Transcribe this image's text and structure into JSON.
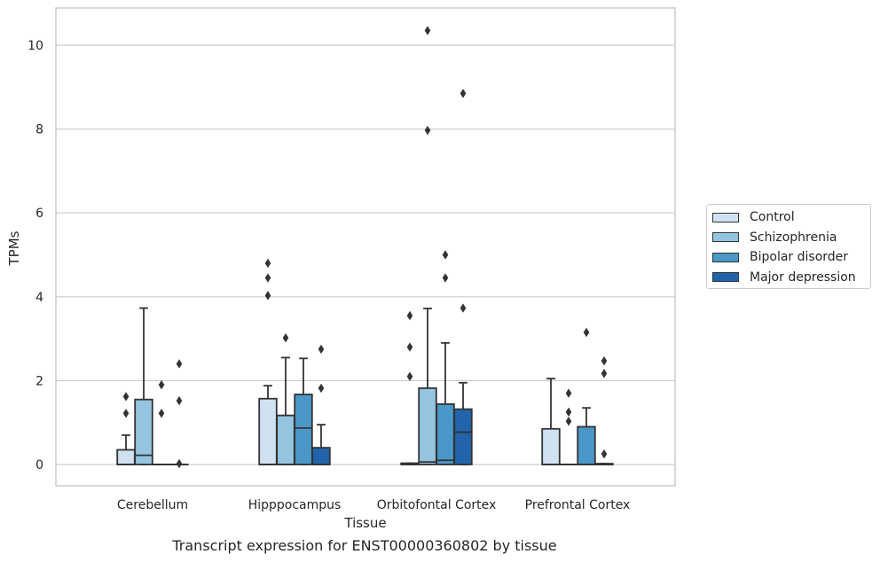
{
  "caption": "Transcript expression for ENST00000360802 by tissue",
  "colors": {
    "Control": "#d0e1f2",
    "Schizophrenia": "#94c4df",
    "Bipolar disorder": "#4a98c9",
    "Major depression": "#2264ab",
    "outline": "#333333",
    "grid": "#cccccc"
  },
  "chart_data": {
    "type": "box",
    "title": "",
    "xlabel": "Tissue",
    "ylabel": "TPMs",
    "ylim": [
      -0.5,
      10.85
    ],
    "yticks": [
      0,
      2,
      4,
      6,
      8,
      10
    ],
    "grid": true,
    "legend_position": "right",
    "categories": [
      "Cerebellum",
      "Hipppocampus",
      "Orbitofontal Cortex",
      "Prefrontal Cortex"
    ],
    "series": [
      {
        "name": "Control",
        "boxes": [
          {
            "q1": 0,
            "median": 0,
            "q3": 0.35,
            "whisker_low": 0,
            "whisker_high": 0.7,
            "outliers": [
              1.22,
              1.62
            ]
          },
          {
            "q1": 0,
            "median": 0,
            "q3": 1.57,
            "whisker_low": 0,
            "whisker_high": 1.88,
            "outliers": [
              4.03,
              4.45,
              4.8
            ]
          },
          {
            "q1": 0,
            "median": 0,
            "q3": 0.03,
            "whisker_low": 0,
            "whisker_high": 0.03,
            "outliers": [
              2.1,
              2.8,
              3.55
            ]
          },
          {
            "q1": 0,
            "median": 0,
            "q3": 0.85,
            "whisker_low": 0,
            "whisker_high": 2.05,
            "outliers": []
          }
        ]
      },
      {
        "name": "Schizophrenia",
        "boxes": [
          {
            "q1": 0,
            "median": 0.22,
            "q3": 1.55,
            "whisker_low": 0,
            "whisker_high": 3.73,
            "outliers": []
          },
          {
            "q1": 0,
            "median": 0,
            "q3": 1.17,
            "whisker_low": 0,
            "whisker_high": 2.55,
            "outliers": [
              3.02
            ]
          },
          {
            "q1": 0,
            "median": 0.06,
            "q3": 1.82,
            "whisker_low": 0,
            "whisker_high": 3.72,
            "outliers": [
              7.97,
              10.35
            ]
          },
          {
            "q1": 0,
            "median": 0,
            "q3": 0,
            "whisker_low": 0,
            "whisker_high": 0,
            "outliers": [
              1.03,
              1.25,
              1.7
            ]
          }
        ]
      },
      {
        "name": "Bipolar disorder",
        "boxes": [
          {
            "q1": 0,
            "median": 0,
            "q3": 0,
            "whisker_low": 0,
            "whisker_high": 0,
            "outliers": [
              1.22,
              1.9
            ]
          },
          {
            "q1": 0,
            "median": 0.87,
            "q3": 1.67,
            "whisker_low": 0,
            "whisker_high": 2.53,
            "outliers": []
          },
          {
            "q1": 0,
            "median": 0.1,
            "q3": 1.44,
            "whisker_low": 0,
            "whisker_high": 2.9,
            "outliers": [
              4.45,
              5.0
            ]
          },
          {
            "q1": 0,
            "median": 0,
            "q3": 0.9,
            "whisker_low": 0,
            "whisker_high": 1.35,
            "outliers": [
              3.15
            ]
          }
        ]
      },
      {
        "name": "Major depression",
        "boxes": [
          {
            "q1": 0,
            "median": 0,
            "q3": 0,
            "whisker_low": 0,
            "whisker_high": 0,
            "outliers": [
              0.02,
              1.52,
              2.4
            ]
          },
          {
            "q1": 0,
            "median": 0,
            "q3": 0.4,
            "whisker_low": 0,
            "whisker_high": 0.95,
            "outliers": [
              1.82,
              2.75
            ]
          },
          {
            "q1": 0,
            "median": 0.77,
            "q3": 1.32,
            "whisker_low": 0,
            "whisker_high": 1.95,
            "outliers": [
              3.73,
              8.85
            ]
          },
          {
            "q1": 0,
            "median": 0,
            "q3": 0.02,
            "whisker_low": 0,
            "whisker_high": 0.02,
            "outliers": [
              0.25,
              2.17,
              2.47
            ]
          }
        ]
      }
    ]
  }
}
